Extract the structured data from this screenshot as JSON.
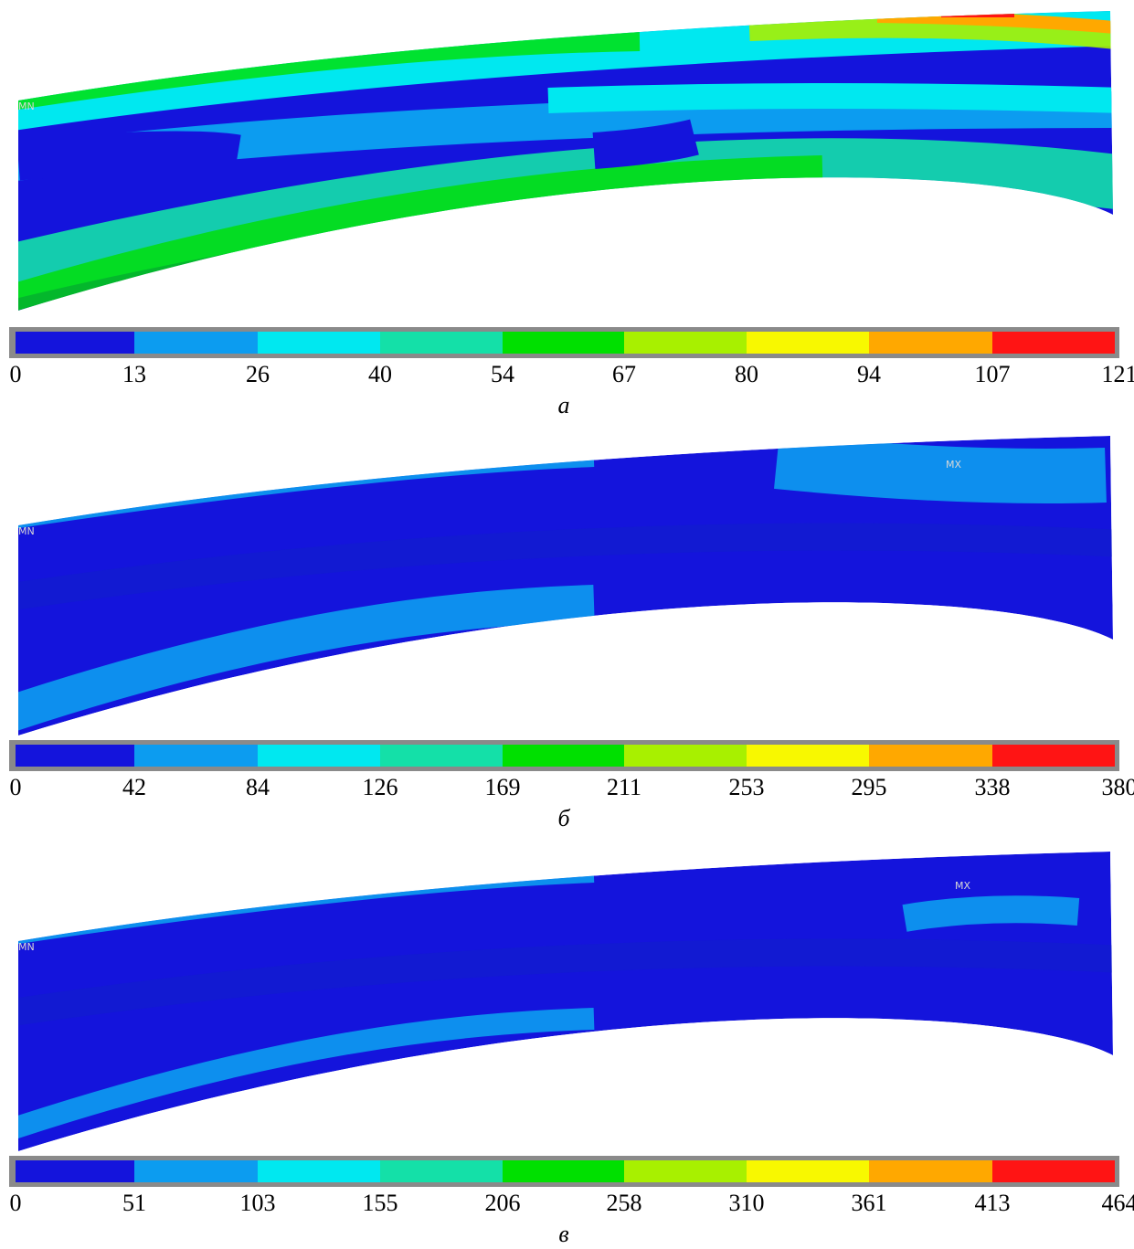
{
  "colorbar_colors": [
    "#1414dc",
    "#0c9cf0",
    "#00e8f0",
    "#14e0a8",
    "#00e000",
    "#a8f000",
    "#f8f800",
    "#ffa800",
    "#ff1414"
  ],
  "panels": [
    {
      "caption": "а",
      "min_label": "MN",
      "colorbar": {
        "ticks": [
          0,
          13,
          26,
          40,
          54,
          67,
          80,
          94,
          107,
          121
        ]
      }
    },
    {
      "caption": "б",
      "min_label": "MN",
      "max_label": "MX",
      "colorbar": {
        "ticks": [
          0,
          42,
          84,
          126,
          169,
          211,
          253,
          295,
          338,
          380
        ]
      }
    },
    {
      "caption": "в",
      "min_label": "MN",
      "max_label": "MX",
      "colorbar": {
        "ticks": [
          0,
          51,
          103,
          155,
          206,
          258,
          310,
          361,
          413,
          464
        ]
      }
    }
  ]
}
